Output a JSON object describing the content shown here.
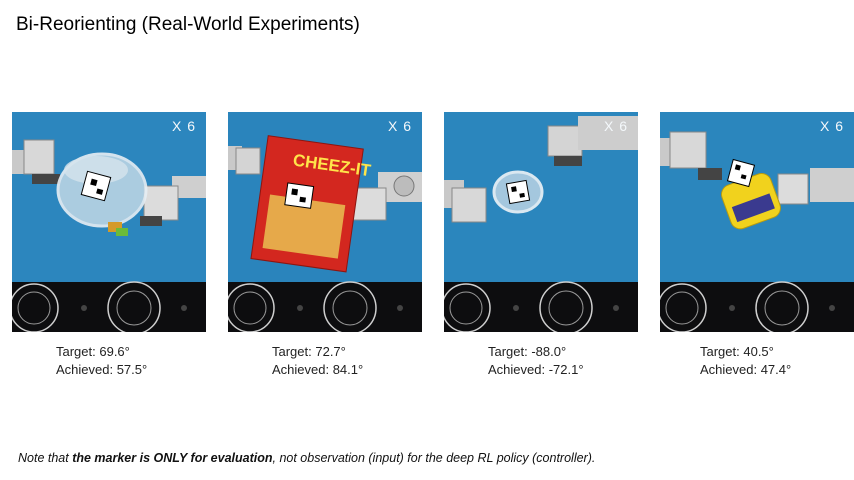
{
  "title": "Bi-Reorienting (Real-World Experiments)",
  "speed_label": "X 6",
  "experiments": [
    {
      "object": "clear-container",
      "target": "Target: 69.6°",
      "achieved": "Achieved: 57.5°"
    },
    {
      "object": "cheez-it-box",
      "target": "Target: 72.7°",
      "achieved": "Achieved: 84.1°",
      "box_text": "CHEEZ-IT"
    },
    {
      "object": "clear-cup",
      "target": "Target: -88.0°",
      "achieved": "Achieved: -72.1°"
    },
    {
      "object": "mustard-bottle",
      "target": "Target: 40.5°",
      "achieved": "Achieved: 47.4°"
    }
  ],
  "note": {
    "prefix": "Note that ",
    "emphasis": "the marker is ONLY for evaluation",
    "suffix": ",  not observation (input) for the deep RL policy (controller)."
  }
}
